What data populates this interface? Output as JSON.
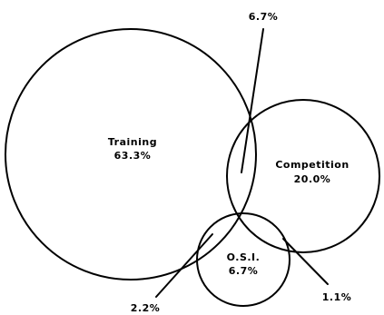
{
  "sets": [
    {
      "id": "training",
      "name": "Training",
      "value": "63.3%"
    },
    {
      "id": "competition",
      "name": "Competition",
      "value": "20.0%"
    },
    {
      "id": "osi",
      "name": "O.S.I.",
      "value": "6.7%"
    }
  ],
  "overlaps": {
    "training_competition": "6.7%",
    "training_osi": "2.2%",
    "competition_osi": "1.1%"
  }
}
